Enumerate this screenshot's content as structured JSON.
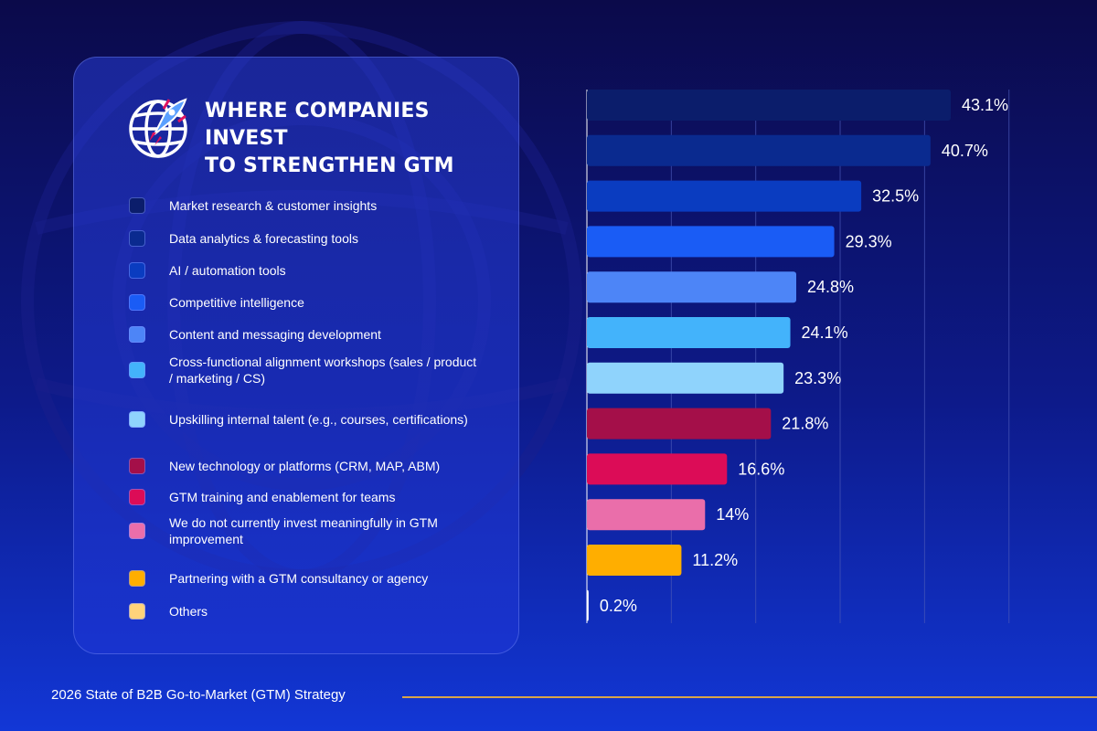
{
  "title_line1": "WHERE COMPANIES INVEST",
  "title_line2": "TO STRENGTHEN GTM",
  "footer": "2026 State of B2B Go-to-Market (GTM) Strategy",
  "colors": {
    "accent_line": "#d9a54a"
  },
  "chart_data": {
    "type": "bar",
    "orientation": "horizontal",
    "title": "Where Companies Invest to Strengthen GTM",
    "xlim": [
      0,
      50
    ],
    "grid": true,
    "legend": "left",
    "series": [
      {
        "name": "Market research & customer insights",
        "value": 43.1,
        "label": "43.1%",
        "color": "#0b1d6b"
      },
      {
        "name": "Data analytics & forecasting tools",
        "value": 40.7,
        "label": "40.7%",
        "color": "#0a2a8f"
      },
      {
        "name": "AI / automation tools",
        "value": 32.5,
        "label": "32.5%",
        "color": "#0a3cc0"
      },
      {
        "name": "Competitive intelligence",
        "value": 29.3,
        "label": "29.3%",
        "color": "#1a5cf5"
      },
      {
        "name": "Content and messaging development",
        "value": 24.8,
        "label": "24.8%",
        "color": "#4d85f7"
      },
      {
        "name": "Cross-functional alignment workshops (sales / product / marketing / CS)",
        "value": 24.1,
        "label": "24.1%",
        "color": "#43b3fb"
      },
      {
        "name": "Upskilling internal talent (e.g., courses, certifications)",
        "value": 23.3,
        "label": "23.3%",
        "color": "#8fd3fc"
      },
      {
        "name": "New technology or platforms (CRM, MAP, ABM)",
        "value": 21.8,
        "label": "21.8%",
        "color": "#a40f49"
      },
      {
        "name": "GTM training and enablement for teams",
        "value": 16.6,
        "label": "16.6%",
        "color": "#dc0c57"
      },
      {
        "name": "We do not currently invest meaningfully in GTM improvement",
        "value": 14,
        "label": "14%",
        "color": "#ea6eaa"
      },
      {
        "name": "Partnering with a GTM consultancy or agency",
        "value": 11.2,
        "label": "11.2%",
        "color": "#ffae00"
      },
      {
        "name": "Others",
        "value": 0.2,
        "label": "0.2%",
        "color": "#ffd37a"
      }
    ]
  }
}
